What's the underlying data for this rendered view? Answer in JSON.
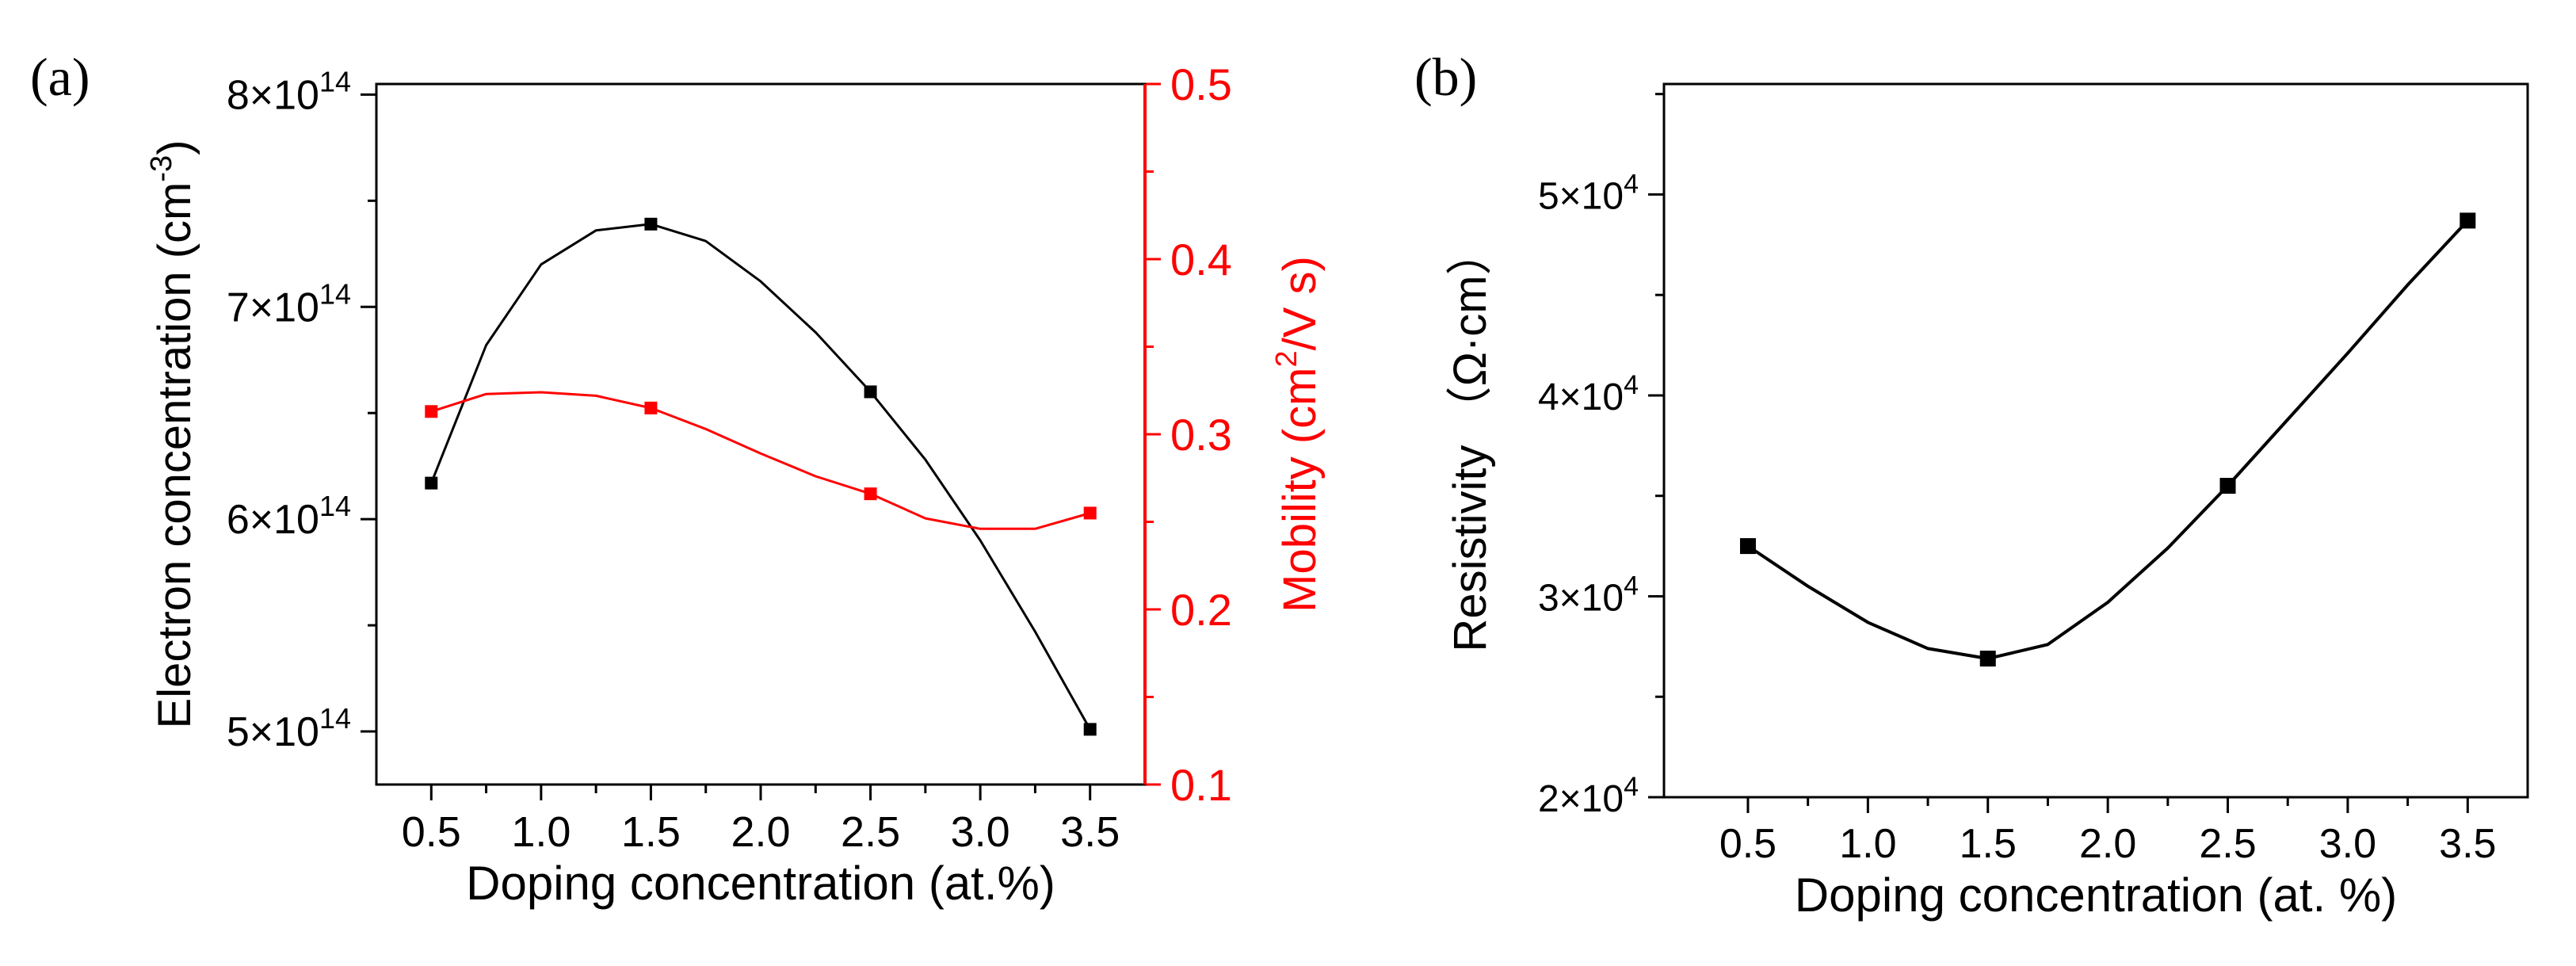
{
  "chart_data": [
    {
      "panel_label": "(a)",
      "type": "line",
      "xlabel": "Doping concentration (at.%)",
      "xlim": [
        0.25,
        3.75
      ],
      "xticks": [
        0.5,
        1.0,
        1.5,
        2.0,
        2.5,
        3.0,
        3.5
      ],
      "xtick_labels": [
        "0.5",
        "1.0",
        "1.5",
        "2.0",
        "2.5",
        "3.0",
        "3.5"
      ],
      "left_axis": {
        "label": "Electron concentration (cm",
        "label_sup": "-3",
        "label_close": ")",
        "ylim": [
          4.75,
          8.05
        ],
        "ticks": [
          5,
          6,
          7,
          8
        ],
        "tick_mantissa": [
          "5",
          "6",
          "7",
          "8"
        ],
        "tick_base": "×10",
        "tick_exp": "14",
        "color": "#000000"
      },
      "right_axis": {
        "label": "Mobility (cm",
        "label_sup": "2",
        "label_close": "/V s)",
        "ylim": [
          0.1,
          0.5
        ],
        "ticks": [
          0.1,
          0.2,
          0.3,
          0.4,
          0.5
        ],
        "tick_labels": [
          "0.1",
          "0.2",
          "0.3",
          "0.4",
          "0.5"
        ],
        "color": "#ff0000"
      },
      "series": [
        {
          "name": "Electron concentration",
          "axis": "left",
          "color": "#000000",
          "x": [
            0.5,
            1.5,
            2.5,
            3.5
          ],
          "values": [
            6.17,
            7.39,
            6.6,
            5.01
          ],
          "unit": "1e14 cm^-3",
          "smooth_x": [
            0.5,
            0.75,
            1.0,
            1.25,
            1.5,
            1.75,
            2.0,
            2.25,
            2.5,
            2.75,
            3.0,
            3.25,
            3.5
          ],
          "smooth_y": [
            6.17,
            6.82,
            7.2,
            7.36,
            7.39,
            7.31,
            7.12,
            6.88,
            6.6,
            6.28,
            5.9,
            5.47,
            5.01
          ]
        },
        {
          "name": "Mobility",
          "axis": "right",
          "color": "#ff0000",
          "x": [
            0.5,
            1.5,
            2.5,
            3.5
          ],
          "values": [
            0.313,
            0.315,
            0.266,
            0.255
          ],
          "unit": "cm^2/V s",
          "smooth_x": [
            0.5,
            0.75,
            1.0,
            1.25,
            1.5,
            1.75,
            2.0,
            2.25,
            2.5,
            2.75,
            3.0,
            3.25,
            3.5
          ],
          "smooth_y": [
            0.313,
            0.323,
            0.324,
            0.322,
            0.315,
            0.303,
            0.289,
            0.276,
            0.266,
            0.252,
            0.246,
            0.246,
            0.255
          ]
        }
      ]
    },
    {
      "panel_label": "(b)",
      "type": "line",
      "xlabel": "Doping concentration (at. %)",
      "ylabel": "Resistivity （Ω·cm）",
      "xlim": [
        0.15,
        3.75
      ],
      "xticks": [
        0.5,
        1.0,
        1.5,
        2.0,
        2.5,
        3.0,
        3.5
      ],
      "xtick_labels": [
        "0.5",
        "1.0",
        "1.5",
        "2.0",
        "2.5",
        "3.0",
        "3.5"
      ],
      "ylim": [
        2.0,
        5.55
      ],
      "yticks": [
        2,
        3,
        4,
        5
      ],
      "ytick_mantissa": [
        "2",
        "3",
        "4",
        "5"
      ],
      "ytick_base": "×10",
      "ytick_exp": "4",
      "series": [
        {
          "name": "Resistivity",
          "color": "#000000",
          "x": [
            0.5,
            1.5,
            2.5,
            3.5
          ],
          "values": [
            3.25,
            2.69,
            3.55,
            4.87
          ],
          "unit": "1e4 Ω·cm",
          "smooth_x": [
            0.5,
            0.75,
            1.0,
            1.25,
            1.5,
            1.75,
            2.0,
            2.25,
            2.5,
            2.75,
            3.0,
            3.25,
            3.5
          ],
          "smooth_y": [
            3.25,
            3.05,
            2.87,
            2.74,
            2.69,
            2.76,
            2.97,
            3.24,
            3.55,
            3.88,
            4.21,
            4.55,
            4.87
          ]
        }
      ]
    }
  ]
}
